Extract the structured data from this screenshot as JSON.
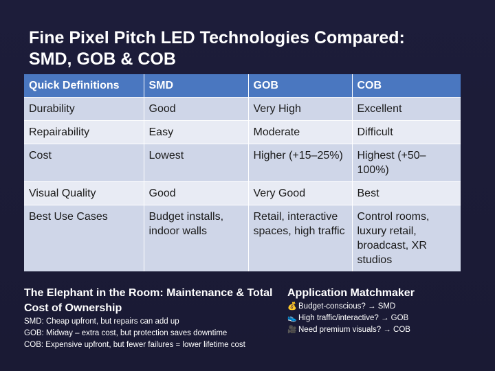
{
  "slide": {
    "title_line1": "Fine Pixel Pitch LED Technologies Compared:",
    "title_line2": "SMD, GOB & COB"
  },
  "table": {
    "headers": [
      "Quick Definitions",
      "SMD",
      "GOB",
      "COB"
    ],
    "rows": [
      [
        "Durability",
        "Good",
        "Very High",
        "Excellent"
      ],
      [
        "Repairability",
        "Easy",
        "Moderate",
        "Difficult"
      ],
      [
        "Cost",
        "Lowest",
        "Higher (+15–25%)",
        "Highest (+50–100%)"
      ],
      [
        "Visual Quality",
        "Good",
        "Very Good",
        "Best"
      ],
      [
        "Best Use Cases",
        "Budget installs, indoor walls",
        "Retail, interactive spaces, high traffic",
        "Control rooms, luxury retail, broadcast, XR studios"
      ]
    ]
  },
  "maintenance": {
    "heading": "The Elephant in the Room: Maintenance & Total Cost of Ownership",
    "lines": [
      "SMD: Cheap upfront, but repairs can add up",
      "GOB: Midway – extra cost, but protection saves downtime",
      "COB: Expensive upfront, but fewer failures = lower lifetime cost"
    ]
  },
  "matchmaker": {
    "heading": "Application Matchmaker",
    "items": [
      {
        "icon": "money-bag-icon",
        "glyph": "💰",
        "text": "Budget-conscious? → SMD"
      },
      {
        "icon": "sneaker-icon",
        "glyph": "👟",
        "text": "High traffic/interactive? → GOB"
      },
      {
        "icon": "film-camera-icon",
        "glyph": "🎥",
        "text": "Need premium visuals? → COB"
      }
    ]
  },
  "colors": {
    "background": "#1c1c38",
    "header_blue": "#4a77c0",
    "row_dark": "#cfd6e8",
    "row_light": "#e8ebf4"
  }
}
